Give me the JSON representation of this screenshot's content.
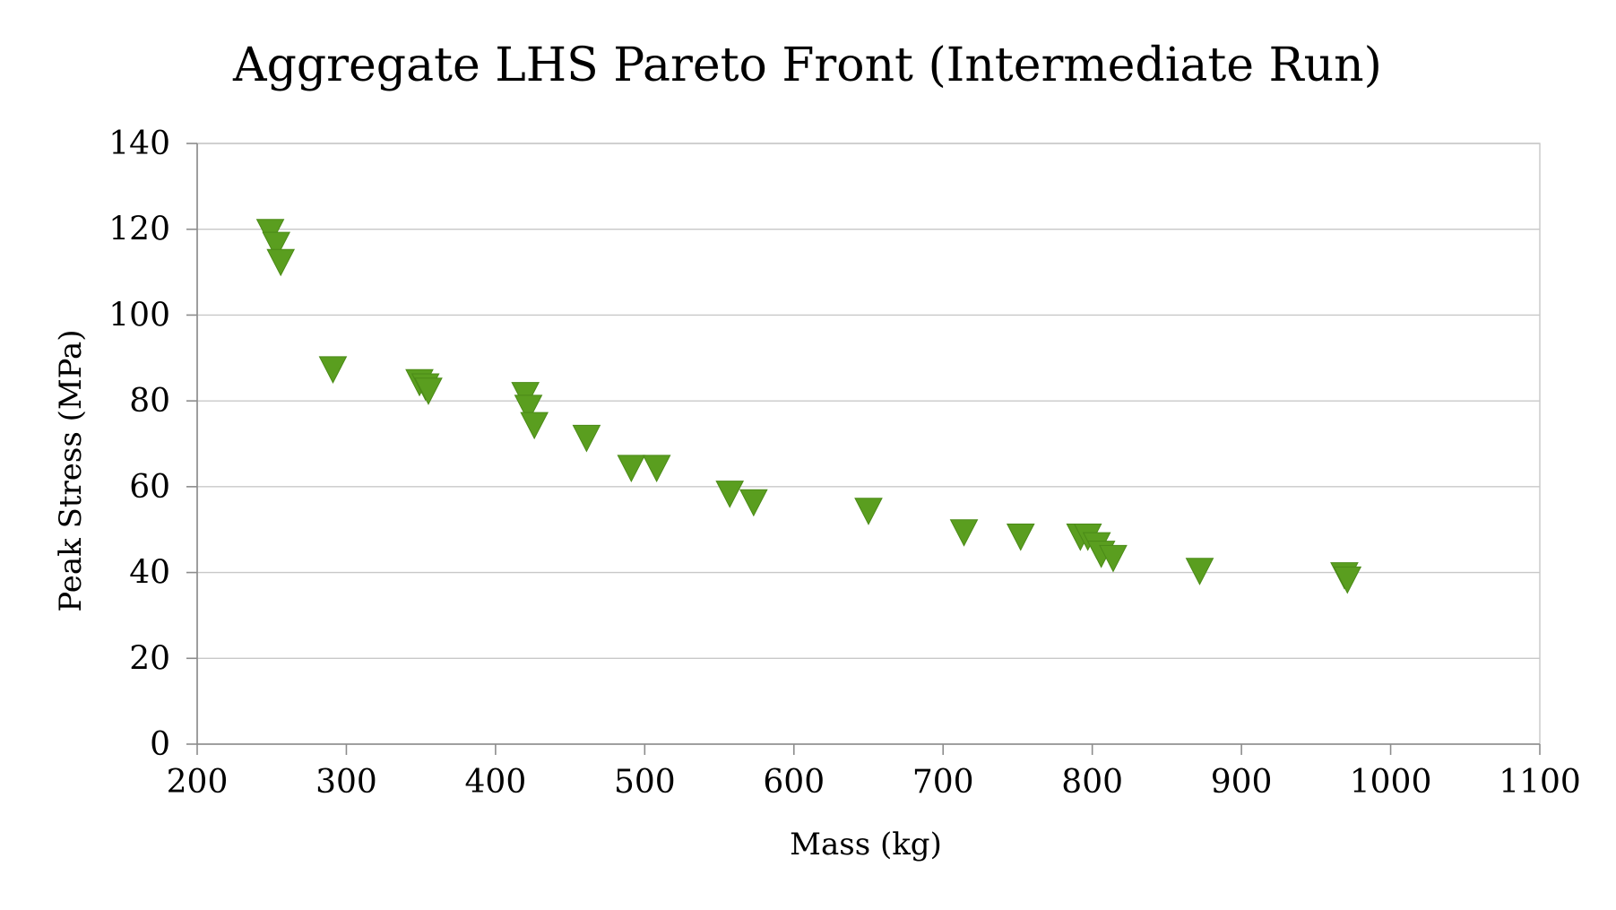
{
  "chart_data": {
    "type": "scatter",
    "title": "Aggregate LHS Pareto Front (Intermediate Run)",
    "xlabel": "Mass (kg)",
    "ylabel": "Peak Stress (MPa)",
    "xlim": [
      200,
      1100
    ],
    "ylim": [
      0,
      140
    ],
    "x_ticks": [
      200,
      300,
      400,
      500,
      600,
      700,
      800,
      900,
      1000,
      1100
    ],
    "y_ticks": [
      0,
      20,
      40,
      60,
      80,
      100,
      120,
      140
    ],
    "grid": "horizontal",
    "legend": "none",
    "marker": "triangle-down",
    "marker_color": "#5a9e1f",
    "series": [
      {
        "x": [
          249,
          253,
          256,
          291,
          349,
          353,
          355,
          420,
          422,
          426,
          461,
          491,
          508,
          557,
          573,
          650,
          714,
          752,
          792,
          797,
          803,
          806,
          814,
          872,
          969,
          971
        ],
        "y": [
          120,
          117,
          113,
          88,
          85,
          84,
          83,
          82,
          79,
          75,
          72,
          65,
          65,
          59,
          57,
          55,
          50,
          49,
          49,
          49,
          47,
          45,
          44,
          41,
          40,
          39
        ]
      }
    ]
  }
}
